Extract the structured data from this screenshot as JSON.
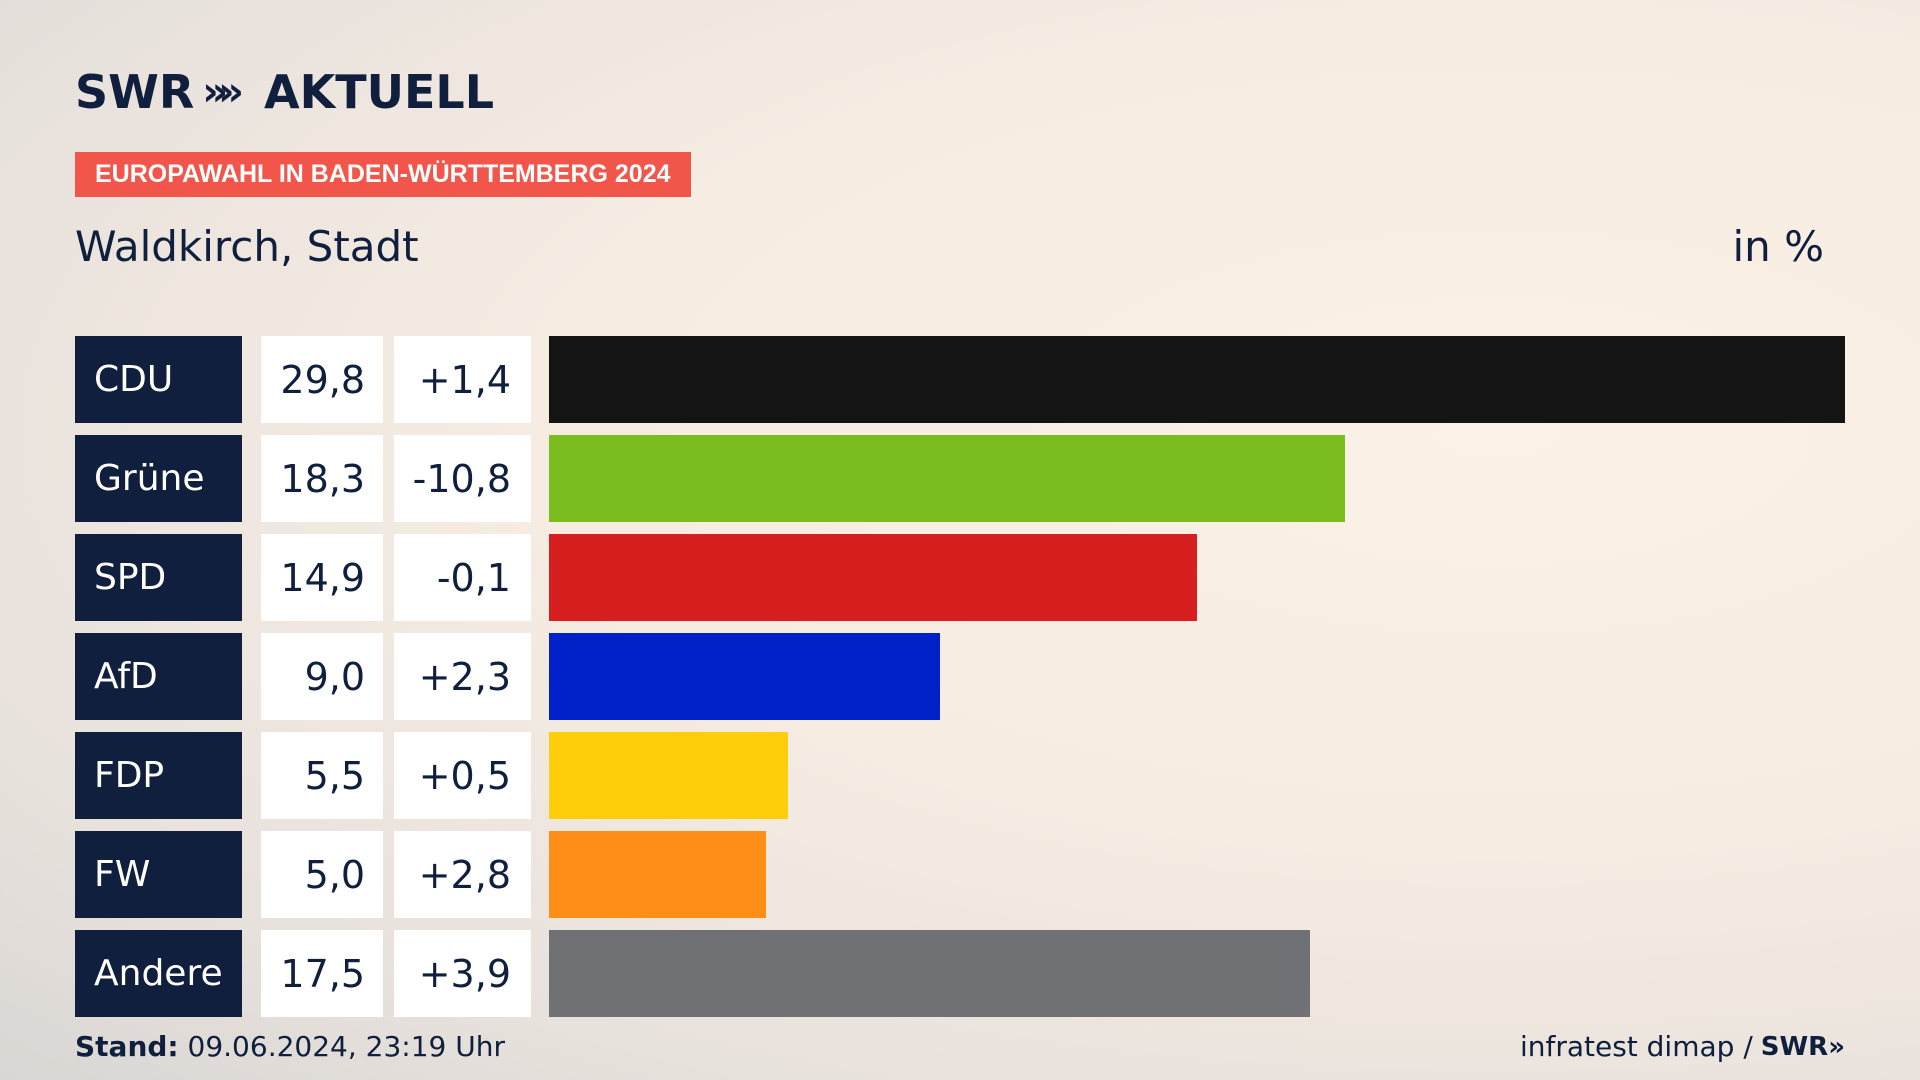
{
  "brand": {
    "swr": "SWR",
    "chevrons": "»",
    "aktuell": "AKTUELL"
  },
  "tag": "EUROPAWAHL IN BADEN-WÜRTTEMBERG 2024",
  "region": "Waldkirch, Stadt",
  "unit": "in %",
  "footer": {
    "stand_label": "Stand:",
    "stand_value": "09.06.2024, 23:19 Uhr",
    "source": "infratest dimap /",
    "source_logo": "SWR»"
  },
  "chart_data": {
    "type": "bar",
    "orientation": "horizontal",
    "categories": [
      "CDU",
      "Grüne",
      "SPD",
      "AfD",
      "FDP",
      "FW",
      "Andere"
    ],
    "values": [
      29.8,
      18.3,
      14.9,
      9.0,
      5.5,
      5.0,
      17.5
    ],
    "value_labels": [
      "29,8",
      "18,3",
      "14,9",
      "9,0",
      "5,5",
      "5,0",
      "17,5"
    ],
    "changes": [
      "+1,4",
      "-10,8",
      "-0,1",
      "+2,3",
      "+0,5",
      "+2,8",
      "+3,9"
    ],
    "colors": [
      "#141414",
      "#7bbd1e",
      "#d81f1f",
      "#0020c8",
      "#ffce0a",
      "#ff8e17",
      "#707174"
    ],
    "xlim": [
      0,
      29.8
    ]
  }
}
